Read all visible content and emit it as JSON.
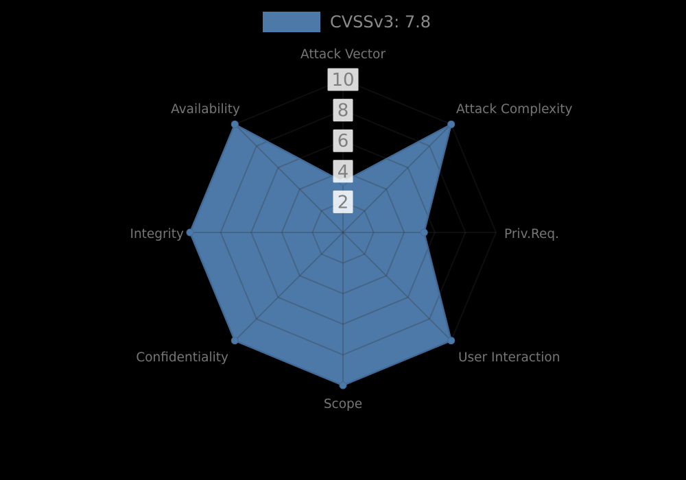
{
  "chart_data": {
    "type": "radar",
    "legend": {
      "label": "CVSSv3: 7.8",
      "position": "top-center"
    },
    "axes": [
      "Attack Vector",
      "Attack Complexity",
      "Priv.Req.",
      "User Interaction",
      "Scope",
      "Confidentiality",
      "Integrity",
      "Availability"
    ],
    "series": [
      {
        "name": "CVSSv3: 7.8",
        "values": [
          3.3,
          10,
          5.3,
          10,
          10,
          10,
          10,
          10
        ],
        "color": "#4d79a8"
      }
    ],
    "radial_ticks": [
      "2",
      "4",
      "6",
      "8",
      "10"
    ],
    "radial_tick_values": [
      2,
      4,
      6,
      8,
      10
    ],
    "range": [
      0,
      10
    ],
    "grid": "polygonal rings with spokes, visible only over filled area",
    "colors": {
      "background": "#000000",
      "fill": "#4d79a8",
      "stroke": "#426a97",
      "grid_line": "rgba(50,50,50,0.28)",
      "axis_label": "#767676",
      "tick_text": "#7f7f7f",
      "tick_box": "rgba(255,255,255,0.85)",
      "legend_text": "#8a8a8a"
    }
  }
}
